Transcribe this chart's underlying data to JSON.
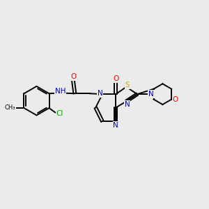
{
  "background_color": "#ebebeb",
  "atom_colors": {
    "C": "#000000",
    "N": "#0000cc",
    "O": "#ff0000",
    "S": "#ccaa00",
    "Cl": "#00aa00",
    "H": "#7a9a9a"
  },
  "bond_color": "#000000",
  "figsize": [
    3.0,
    3.0
  ],
  "dpi": 100
}
